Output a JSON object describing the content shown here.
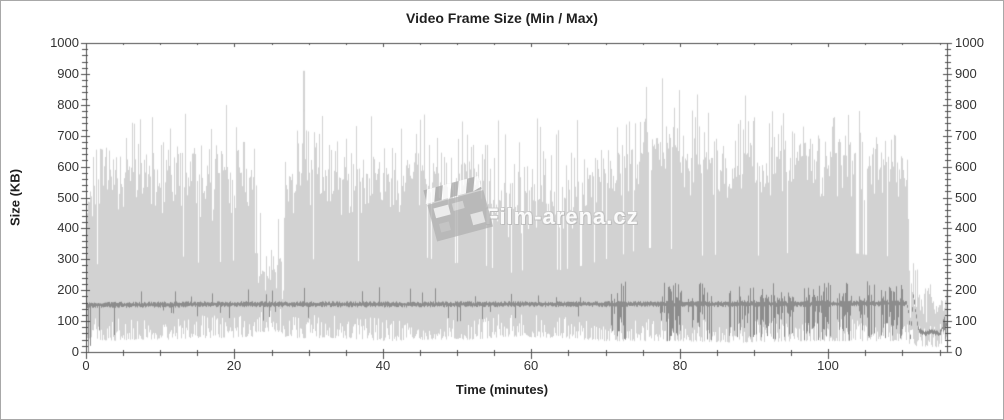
{
  "watermark": {
    "text": "Film-arena.cz",
    "icon": "clapperboard-icon"
  },
  "chart_data": {
    "type": "area",
    "title": "Video Frame Size (Min / Max)",
    "xlabel": "Time (minutes)",
    "ylabel": "Size (KB)",
    "xlim": [
      0,
      116
    ],
    "ylim": [
      0,
      1000
    ],
    "x_major_ticks": [
      0,
      20,
      40,
      60,
      80,
      100
    ],
    "x_minor_step": 5,
    "y_major_ticks": [
      0,
      100,
      200,
      300,
      400,
      500,
      600,
      700,
      800,
      900,
      1000
    ],
    "y_minor_step": 20,
    "grid": false,
    "legend": "none",
    "axes": "box with left and right value scales, ticks on all four sides",
    "colors": {
      "band": "#d2d2d2",
      "line": "#8c8c8c",
      "axis": "#4d4d4d",
      "text": "#2e2e2e"
    },
    "series": [
      {
        "name": "max_frame_size_envelope_KB",
        "role": "upper bound of min/max band",
        "breakpoints": [
          [
            0,
            500
          ],
          [
            1,
            560
          ],
          [
            3,
            590
          ],
          [
            5,
            570
          ],
          [
            7,
            610
          ],
          [
            9,
            580
          ],
          [
            11,
            600
          ],
          [
            13,
            620
          ],
          [
            15,
            580
          ],
          [
            17,
            560
          ],
          [
            19,
            600
          ],
          [
            21,
            580
          ],
          [
            22.5,
            540
          ],
          [
            23.2,
            255
          ],
          [
            26.3,
            270
          ],
          [
            27,
            560
          ],
          [
            29,
            600
          ],
          [
            31,
            600
          ],
          [
            34,
            570
          ],
          [
            37,
            590
          ],
          [
            40,
            610
          ],
          [
            43,
            590
          ],
          [
            46,
            610
          ],
          [
            49,
            570
          ],
          [
            52,
            590
          ],
          [
            55,
            540
          ],
          [
            57,
            510
          ],
          [
            59,
            530
          ],
          [
            61,
            550
          ],
          [
            64,
            530
          ],
          [
            67,
            560
          ],
          [
            70,
            600
          ],
          [
            73,
            640
          ],
          [
            75,
            670
          ],
          [
            78,
            680
          ],
          [
            80,
            650
          ],
          [
            82,
            620
          ],
          [
            85,
            630
          ],
          [
            88,
            650
          ],
          [
            91,
            620
          ],
          [
            93,
            660
          ],
          [
            96,
            620
          ],
          [
            99,
            630
          ],
          [
            102,
            650
          ],
          [
            105,
            630
          ],
          [
            108,
            620
          ],
          [
            110.3,
            560
          ],
          [
            110.85,
            520
          ],
          [
            111.05,
            70
          ],
          [
            111.4,
            300
          ],
          [
            112,
            290
          ],
          [
            112.35,
            150
          ],
          [
            113.5,
            205
          ],
          [
            114.5,
            150
          ],
          [
            115.2,
            140
          ],
          [
            116,
            175
          ]
        ]
      },
      {
        "name": "min_frame_size_envelope_KB",
        "role": "lower bound of min/max band",
        "breakpoints": [
          [
            0,
            45
          ],
          [
            3,
            35
          ],
          [
            7,
            40
          ],
          [
            11,
            40
          ],
          [
            15,
            45
          ],
          [
            19,
            45
          ],
          [
            22.5,
            50
          ],
          [
            23.2,
            65
          ],
          [
            26.3,
            65
          ],
          [
            27,
            45
          ],
          [
            34,
            45
          ],
          [
            40,
            35
          ],
          [
            46,
            40
          ],
          [
            52,
            40
          ],
          [
            57,
            50
          ],
          [
            64,
            45
          ],
          [
            70,
            35
          ],
          [
            75,
            35
          ],
          [
            80,
            35
          ],
          [
            88,
            30
          ],
          [
            96,
            35
          ],
          [
            105,
            35
          ],
          [
            110.3,
            35
          ],
          [
            110.85,
            30
          ],
          [
            111.05,
            12
          ],
          [
            111.4,
            20
          ],
          [
            112.35,
            18
          ],
          [
            114.5,
            15
          ],
          [
            116,
            22
          ]
        ]
      },
      {
        "name": "avg_frame_size_KB",
        "role": "dark center line",
        "breakpoints": [
          [
            0,
            152
          ],
          [
            20,
            155
          ],
          [
            40,
            154
          ],
          [
            60,
            155
          ],
          [
            80,
            155
          ],
          [
            100,
            156
          ],
          [
            110.6,
            158
          ],
          [
            110.9,
            120
          ],
          [
            111.05,
            40
          ],
          [
            111.5,
            185
          ],
          [
            111.8,
            125
          ],
          [
            112.2,
            70
          ],
          [
            113,
            60
          ],
          [
            114,
            66
          ],
          [
            115,
            58
          ],
          [
            115.6,
            88
          ],
          [
            116,
            92
          ]
        ]
      }
    ],
    "line_burst_regions": [
      [
        70.6,
        72.7
      ],
      [
        77.2,
        80.1
      ],
      [
        81,
        84.4
      ],
      [
        86.2,
        95.4
      ],
      [
        96.7,
        103.2
      ],
      [
        104.2,
        106.3
      ],
      [
        106.9,
        110.4
      ],
      [
        115.4,
        116
      ]
    ],
    "line_start_dips": [
      [
        0.25,
        0
      ],
      [
        0.6,
        20
      ],
      [
        1.8,
        70
      ],
      [
        3.8,
        55
      ]
    ],
    "max_spikes": [
      [
        2.1,
        655
      ],
      [
        6.4,
        660
      ],
      [
        12.3,
        665
      ],
      [
        18.2,
        650
      ],
      [
        21.6,
        520
      ],
      [
        22.3,
        470
      ],
      [
        23.4,
        450
      ],
      [
        25.9,
        430
      ],
      [
        29.2,
        910
      ],
      [
        29.35,
        780
      ],
      [
        33.5,
        650
      ],
      [
        41.2,
        660
      ],
      [
        47.8,
        645
      ],
      [
        53.4,
        640
      ],
      [
        71.6,
        700
      ],
      [
        75.3,
        755
      ],
      [
        78.1,
        730
      ],
      [
        80.4,
        700
      ],
      [
        84.9,
        690
      ],
      [
        88.5,
        720
      ],
      [
        93.2,
        705
      ],
      [
        97.6,
        690
      ],
      [
        100.8,
        760
      ],
      [
        102.3,
        700
      ],
      [
        104.6,
        680
      ],
      [
        106.5,
        695
      ]
    ],
    "annotations": [
      "Film-arena.cz watermark with clapperboard icon in plot center"
    ]
  }
}
